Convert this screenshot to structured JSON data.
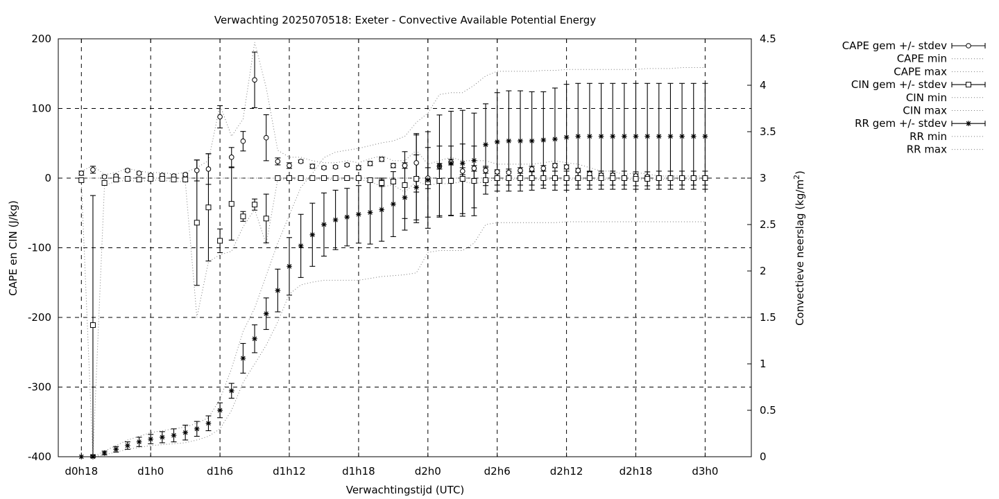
{
  "chart_data": {
    "type": "line",
    "title": "Verwachting 2025070518: Exeter - Convective Available Potential Energy",
    "xlabel": "Verwachtingstijd (UTC)",
    "ylabel": "CAPE en CIN (J/kg)",
    "y2label_main": "Convectieve neerslag (kg/m",
    "y2label_sup": "2",
    "y2label_end": ")",
    "x_unit": "hours since d0h0",
    "xlim": [
      16,
      76
    ],
    "ylim": [
      -400,
      200
    ],
    "y2lim": [
      0,
      4.5
    ],
    "grid": true,
    "legend_position": "top-right, outside plot",
    "x_ticks": [
      {
        "value": 18,
        "label": "d0h18"
      },
      {
        "value": 24,
        "label": "d1h0"
      },
      {
        "value": 30,
        "label": "d1h6"
      },
      {
        "value": 36,
        "label": "d1h12"
      },
      {
        "value": 42,
        "label": "d1h18"
      },
      {
        "value": 48,
        "label": "d2h0"
      },
      {
        "value": 54,
        "label": "d2h6"
      },
      {
        "value": 60,
        "label": "d2h12"
      },
      {
        "value": 66,
        "label": "d2h18"
      },
      {
        "value": 72,
        "label": "d3h0"
      }
    ],
    "y_ticks": [
      {
        "value": 200,
        "label": "200"
      },
      {
        "value": 100,
        "label": "100"
      },
      {
        "value": 0,
        "label": "0"
      },
      {
        "value": -100,
        "label": "-100"
      },
      {
        "value": -200,
        "label": "-200"
      },
      {
        "value": -300,
        "label": "-300"
      },
      {
        "value": -400,
        "label": "-400"
      }
    ],
    "y2_ticks": [
      {
        "value": 0,
        "label": "0"
      },
      {
        "value": 0.5,
        "label": "0.5"
      },
      {
        "value": 1,
        "label": "1"
      },
      {
        "value": 1.5,
        "label": "1.5"
      },
      {
        "value": 2,
        "label": "2"
      },
      {
        "value": 2.5,
        "label": "2.5"
      },
      {
        "value": 3,
        "label": "3"
      },
      {
        "value": 3.5,
        "label": "3.5"
      },
      {
        "value": 4,
        "label": "4"
      },
      {
        "value": 4.5,
        "label": "4.5"
      }
    ],
    "x": [
      18,
      19,
      20,
      21,
      22,
      23,
      24,
      25,
      26,
      27,
      28,
      29,
      30,
      31,
      32,
      33,
      34,
      35,
      36,
      37,
      38,
      39,
      40,
      41,
      42,
      43,
      44,
      45,
      46,
      47,
      48,
      49,
      50,
      51,
      52,
      53,
      54,
      55,
      56,
      57,
      58,
      59,
      60,
      61,
      62,
      63,
      64,
      65,
      66,
      67,
      68,
      69,
      70,
      71,
      72
    ],
    "series": [
      {
        "name": "CAPE gem +/- stdev",
        "axis": "left",
        "marker": "circle",
        "kind": "errorbar",
        "values": [
          7,
          12,
          2,
          3,
          11,
          7,
          4,
          4,
          3,
          5,
          11,
          13,
          88,
          30,
          53,
          141,
          58,
          24,
          18,
          24,
          17,
          15,
          16,
          19,
          15,
          21,
          27,
          18,
          18,
          22,
          0,
          17,
          23,
          10,
          14,
          11,
          9,
          8,
          11,
          13,
          14,
          18,
          16,
          11,
          6,
          4,
          4,
          0,
          3,
          2,
          0,
          0,
          0,
          0,
          0
        ],
        "stdev": [
          3,
          5,
          2,
          2,
          2,
          2,
          2,
          2,
          2,
          2,
          15,
          22,
          16,
          14,
          14,
          40,
          33,
          5,
          4,
          2,
          3,
          2,
          2,
          2,
          3,
          3,
          3,
          3,
          4,
          42,
          15,
          4,
          4,
          5,
          4,
          4,
          3,
          5,
          4,
          4,
          4,
          3,
          3,
          3,
          3,
          3,
          3,
          2,
          3,
          2,
          2,
          2,
          2,
          2,
          2
        ]
      },
      {
        "name": "CAPE min",
        "axis": "left",
        "kind": "line",
        "values": [
          0,
          0,
          0,
          0,
          0,
          0,
          0,
          0,
          0,
          0,
          0,
          0,
          0,
          0,
          0,
          0,
          0,
          0,
          0,
          0,
          0,
          0,
          0,
          0,
          0,
          0,
          0,
          0,
          0,
          0,
          0,
          0,
          0,
          0,
          0,
          0,
          0,
          0,
          0,
          0,
          0,
          0,
          0,
          0,
          0,
          0,
          0,
          0,
          0,
          0,
          0,
          0,
          0,
          0,
          0
        ]
      },
      {
        "name": "CAPE max",
        "axis": "left",
        "kind": "line",
        "values": [
          10,
          18,
          5,
          8,
          14,
          10,
          8,
          8,
          6,
          8,
          15,
          25,
          105,
          60,
          85,
          195,
          130,
          40,
          30,
          30,
          25,
          22,
          22,
          25,
          22,
          28,
          32,
          25,
          25,
          40,
          20,
          25,
          30,
          25,
          25,
          25,
          20,
          20,
          20,
          20,
          22,
          25,
          22,
          20,
          15,
          10,
          10,
          5,
          8,
          6,
          3,
          3,
          3,
          3,
          3
        ]
      },
      {
        "name": "CIN gem +/- stdev",
        "axis": "left",
        "marker": "square",
        "kind": "errorbar",
        "values": [
          -3,
          -211,
          -7,
          -2,
          -1,
          -2,
          -1,
          -1,
          -2,
          -2,
          -64,
          -42,
          -90,
          -37,
          -55,
          -38,
          -58,
          0,
          0,
          0,
          0,
          0,
          0,
          0,
          0,
          -3,
          -7,
          -5,
          -10,
          -1,
          -6,
          -4,
          -4,
          -1,
          -4,
          -3,
          0,
          0,
          0,
          0,
          0,
          0,
          0,
          0,
          0,
          0,
          0,
          0,
          -1,
          -1,
          0,
          0,
          0,
          0,
          0
        ],
        "stdev": [
          2,
          186,
          3,
          2,
          2,
          2,
          2,
          2,
          2,
          2,
          90,
          77,
          17,
          52,
          7,
          8,
          35,
          0,
          0,
          0,
          0,
          0,
          0,
          0,
          0,
          3,
          5,
          3,
          48,
          63,
          50,
          50,
          50,
          50,
          50,
          20,
          10,
          10,
          10,
          10,
          10,
          10,
          10,
          10,
          10,
          10,
          10,
          10,
          10,
          10,
          10,
          10,
          10,
          10,
          10
        ]
      },
      {
        "name": "CIN min",
        "axis": "left",
        "kind": "line",
        "values": [
          -5,
          -400,
          -10,
          -5,
          -3,
          -5,
          -3,
          -3,
          -5,
          -5,
          -200,
          -120,
          -110,
          -105,
          -70,
          -45,
          -95,
          -2,
          -2,
          -2,
          -2,
          -2,
          -2,
          -2,
          -2,
          -5,
          -12,
          -10,
          -20,
          -5,
          -10,
          -8,
          -8,
          -5,
          -8,
          -5,
          -2,
          -2,
          -2,
          -2,
          -2,
          -2,
          -2,
          -2,
          -2,
          -2,
          -2,
          -2,
          -2,
          -2,
          -2,
          -2,
          -2,
          -2,
          -2
        ]
      },
      {
        "name": "CIN max",
        "axis": "left",
        "kind": "line",
        "values": [
          0,
          0,
          0,
          0,
          0,
          0,
          0,
          0,
          0,
          0,
          0,
          0,
          0,
          0,
          0,
          0,
          0,
          0,
          0,
          0,
          0,
          0,
          0,
          0,
          0,
          0,
          0,
          0,
          0,
          0,
          0,
          0,
          0,
          0,
          0,
          0,
          0,
          0,
          0,
          0,
          0,
          0,
          0,
          0,
          0,
          0,
          0,
          0,
          0,
          0,
          0,
          0,
          0,
          0,
          0
        ]
      },
      {
        "name": "RR gem +/- stdev",
        "axis": "right",
        "marker": "star",
        "kind": "errorbar",
        "values": [
          0,
          0,
          0.04,
          0.08,
          0.12,
          0.16,
          0.19,
          0.21,
          0.23,
          0.26,
          0.3,
          0.36,
          0.5,
          0.71,
          1.06,
          1.27,
          1.54,
          1.79,
          2.05,
          2.27,
          2.39,
          2.5,
          2.55,
          2.58,
          2.61,
          2.63,
          2.66,
          2.72,
          2.79,
          2.9,
          2.98,
          3.13,
          3.16,
          3.16,
          3.19,
          3.36,
          3.39,
          3.4,
          3.4,
          3.4,
          3.41,
          3.42,
          3.44,
          3.45,
          3.45,
          3.45,
          3.45,
          3.45,
          3.45,
          3.45,
          3.45,
          3.45,
          3.45,
          3.45,
          3.45
        ],
        "stdev": [
          0,
          0.01,
          0.02,
          0.03,
          0.04,
          0.05,
          0.05,
          0.06,
          0.07,
          0.08,
          0.08,
          0.08,
          0.08,
          0.08,
          0.16,
          0.15,
          0.17,
          0.23,
          0.31,
          0.34,
          0.34,
          0.34,
          0.32,
          0.31,
          0.31,
          0.34,
          0.34,
          0.35,
          0.35,
          0.35,
          0.52,
          0.55,
          0.56,
          0.57,
          0.51,
          0.44,
          0.53,
          0.54,
          0.54,
          0.53,
          0.52,
          0.55,
          0.57,
          0.57,
          0.57,
          0.57,
          0.57,
          0.57,
          0.57,
          0.57,
          0.57,
          0.57,
          0.57,
          0.57,
          0.57
        ]
      },
      {
        "name": "RR min",
        "axis": "right",
        "kind": "line",
        "values": [
          0,
          0,
          0.02,
          0.05,
          0.08,
          0.1,
          0.12,
          0.13,
          0.14,
          0.15,
          0.18,
          0.22,
          0.3,
          0.5,
          0.8,
          1.0,
          1.2,
          1.45,
          1.75,
          1.85,
          1.88,
          1.9,
          1.9,
          1.9,
          1.9,
          1.92,
          1.94,
          1.95,
          1.96,
          1.98,
          2.2,
          2.22,
          2.22,
          2.22,
          2.3,
          2.5,
          2.52,
          2.52,
          2.52,
          2.52,
          2.52,
          2.52,
          2.53,
          2.53,
          2.53,
          2.53,
          2.53,
          2.53,
          2.53,
          2.53,
          2.53,
          2.53,
          2.53,
          2.53,
          2.53
        ]
      },
      {
        "name": "RR max",
        "axis": "right",
        "kind": "line",
        "values": [
          0,
          0,
          0.06,
          0.12,
          0.18,
          0.22,
          0.26,
          0.28,
          0.3,
          0.32,
          0.36,
          0.42,
          0.62,
          0.95,
          1.35,
          1.6,
          1.95,
          2.3,
          2.6,
          2.9,
          3.05,
          3.22,
          3.28,
          3.3,
          3.32,
          3.35,
          3.38,
          3.4,
          3.45,
          3.6,
          3.7,
          3.9,
          3.92,
          3.92,
          4.0,
          4.1,
          4.15,
          4.15,
          4.15,
          4.15,
          4.16,
          4.16,
          4.17,
          4.17,
          4.17,
          4.17,
          4.17,
          4.17,
          4.17,
          4.18,
          4.18,
          4.18,
          4.19,
          4.19,
          4.19
        ]
      }
    ]
  }
}
